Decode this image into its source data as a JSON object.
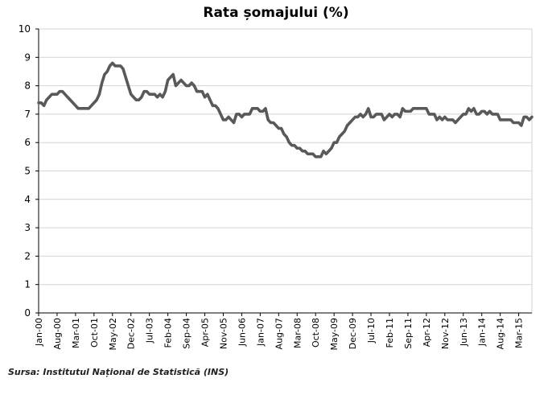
{
  "chart_data": {
    "type": "line",
    "title": "Rata șomajului (%)",
    "xlabel": "",
    "ylabel": "",
    "ylim": [
      0,
      10
    ],
    "yticks": [
      0,
      1,
      2,
      3,
      4,
      5,
      6,
      7,
      8,
      9,
      10
    ],
    "grid": "horizontal",
    "legend": "none",
    "line_color": "#595959",
    "x_tick_labels": [
      "Jan-00",
      "Aug-00",
      "Mar-01",
      "Oct-01",
      "May-02",
      "Dec-02",
      "Jul-03",
      "Feb-04",
      "Sep-04",
      "Apr-05",
      "Nov-05",
      "Jun-06",
      "Jan-07",
      "Aug-07",
      "Mar-08",
      "Oct-08",
      "May-09",
      "Dec-09",
      "Jul-10",
      "Feb-11",
      "Sep-11",
      "Apr-12",
      "Nov-12",
      "Jun-13",
      "Jan-14",
      "Aug-14",
      "Mar-15"
    ],
    "x_start": "Jan-00",
    "x_end": "Mar-15",
    "series": [
      {
        "name": "",
        "values": [
          7.4,
          7.4,
          7.3,
          7.5,
          7.6,
          7.7,
          7.7,
          7.7,
          7.8,
          7.8,
          7.7,
          7.6,
          7.5,
          7.4,
          7.3,
          7.2,
          7.2,
          7.2,
          7.2,
          7.2,
          7.3,
          7.4,
          7.5,
          7.7,
          8.1,
          8.4,
          8.5,
          8.7,
          8.8,
          8.7,
          8.7,
          8.7,
          8.6,
          8.3,
          8.0,
          7.7,
          7.6,
          7.5,
          7.5,
          7.6,
          7.8,
          7.8,
          7.7,
          7.7,
          7.7,
          7.6,
          7.7,
          7.6,
          7.8,
          8.2,
          8.3,
          8.4,
          8.0,
          8.1,
          8.2,
          8.1,
          8.0,
          8.0,
          8.1,
          8.0,
          7.8,
          7.8,
          7.8,
          7.6,
          7.7,
          7.5,
          7.3,
          7.3,
          7.2,
          7.0,
          6.8,
          6.8,
          6.9,
          6.8,
          6.7,
          7.0,
          7.0,
          6.9,
          7.0,
          7.0,
          7.0,
          7.2,
          7.2,
          7.2,
          7.1,
          7.1,
          7.2,
          6.8,
          6.7,
          6.7,
          6.6,
          6.5,
          6.5,
          6.3,
          6.2,
          6.0,
          5.9,
          5.9,
          5.8,
          5.8,
          5.7,
          5.7,
          5.6,
          5.6,
          5.6,
          5.5,
          5.5,
          5.5,
          5.7,
          5.6,
          5.7,
          5.8,
          6.0,
          6.0,
          6.2,
          6.3,
          6.4,
          6.6,
          6.7,
          6.8,
          6.9,
          6.9,
          7.0,
          6.9,
          7.0,
          7.2,
          6.9,
          6.9,
          7.0,
          7.0,
          7.0,
          6.8,
          6.9,
          7.0,
          6.9,
          7.0,
          7.0,
          6.9,
          7.2,
          7.1,
          7.1,
          7.1,
          7.2,
          7.2,
          7.2,
          7.2,
          7.2,
          7.2,
          7.0,
          7.0,
          7.0,
          6.8,
          6.9,
          6.8,
          6.9,
          6.8,
          6.8,
          6.8,
          6.7,
          6.8,
          6.9,
          7.0,
          7.0,
          7.2,
          7.1,
          7.2,
          7.0,
          7.0,
          7.1,
          7.1,
          7.0,
          7.1,
          7.0,
          7.0,
          7.0,
          6.8,
          6.8,
          6.8,
          6.8,
          6.8,
          6.7,
          6.7,
          6.7,
          6.6,
          6.9,
          6.9,
          6.8,
          6.9
        ]
      }
    ]
  },
  "source_note": "Sursa: Institutul Național de Statistică (INS)"
}
